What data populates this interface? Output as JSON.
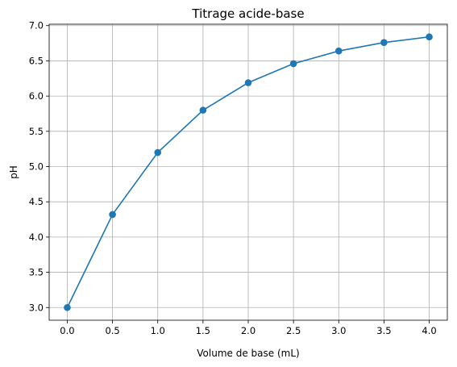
{
  "chart_data": {
    "type": "line",
    "title": "Titrage acide-base",
    "xlabel": "Volume de base (mL)",
    "ylabel": "pH",
    "xlim": [
      -0.2,
      4.2
    ],
    "ylim": [
      2.82,
      7.02
    ],
    "grid": true,
    "x_ticks": [
      0.0,
      0.5,
      1.0,
      1.5,
      2.0,
      2.5,
      3.0,
      3.5,
      4.0
    ],
    "x_tick_labels": [
      "0.0",
      "0.5",
      "1.0",
      "1.5",
      "2.0",
      "2.5",
      "3.0",
      "3.5",
      "4.0"
    ],
    "y_ticks": [
      3.0,
      3.5,
      4.0,
      4.5,
      5.0,
      5.5,
      6.0,
      6.5,
      7.0
    ],
    "y_tick_labels": [
      "3.0",
      "3.5",
      "4.0",
      "4.5",
      "5.0",
      "5.5",
      "6.0",
      "6.5",
      "7.0"
    ],
    "marker": "circle",
    "color": "#1f77b4",
    "series": [
      {
        "x": [
          0.0,
          0.5,
          1.0,
          1.5,
          2.0,
          2.5,
          3.0,
          3.5,
          4.0
        ],
        "y": [
          3.0,
          4.32,
          5.2,
          5.8,
          6.19,
          6.46,
          6.64,
          6.76,
          6.84
        ]
      }
    ]
  }
}
